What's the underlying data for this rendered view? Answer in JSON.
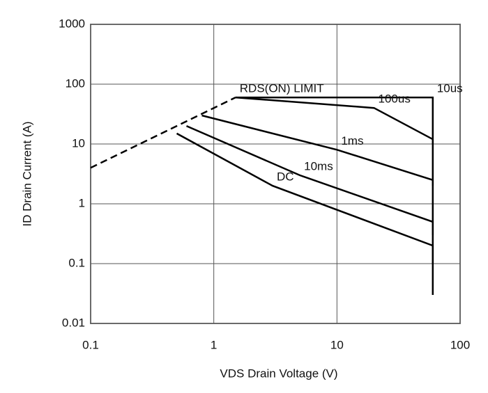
{
  "chart_data": {
    "type": "line",
    "x_label": "VDS Drain Voltage (V)",
    "y_label": "ID Drain Current (A)",
    "log_x": true,
    "log_y": true,
    "grid": true,
    "xlim": [
      0.1,
      100
    ],
    "xticks": [
      0.1,
      1,
      10,
      100
    ],
    "ylim": [
      0.01,
      1000
    ],
    "yticks": [
      0.01,
      0.1,
      1,
      10,
      100,
      1000
    ],
    "series": [
      {
        "name": "RDS(ON) LIMIT",
        "color": "#000000",
        "x": [
          0.1,
          1.5
        ],
        "values": [
          4,
          60
        ]
      },
      {
        "name": "10us",
        "color": "#000000",
        "x": [
          1.5,
          60,
          60
        ],
        "values": [
          60,
          60,
          10
        ]
      },
      {
        "name": "100us",
        "color": "#000000",
        "x": [
          1.5,
          20,
          60,
          60
        ],
        "values": [
          60,
          40,
          12,
          2
        ]
      },
      {
        "name": "1ms",
        "color": "#000000",
        "x": [
          0.8,
          10,
          60,
          60
        ],
        "values": [
          30,
          8,
          2.5,
          0.3
        ]
      },
      {
        "name": "10ms",
        "color": "#000000",
        "x": [
          0.6,
          5,
          60,
          60
        ],
        "values": [
          20,
          3,
          0.5,
          0.1
        ]
      },
      {
        "name": "DC",
        "color": "#000000",
        "x": [
          0.5,
          3,
          60,
          60
        ],
        "values": [
          15,
          2,
          0.2,
          0.03
        ]
      }
    ]
  }
}
